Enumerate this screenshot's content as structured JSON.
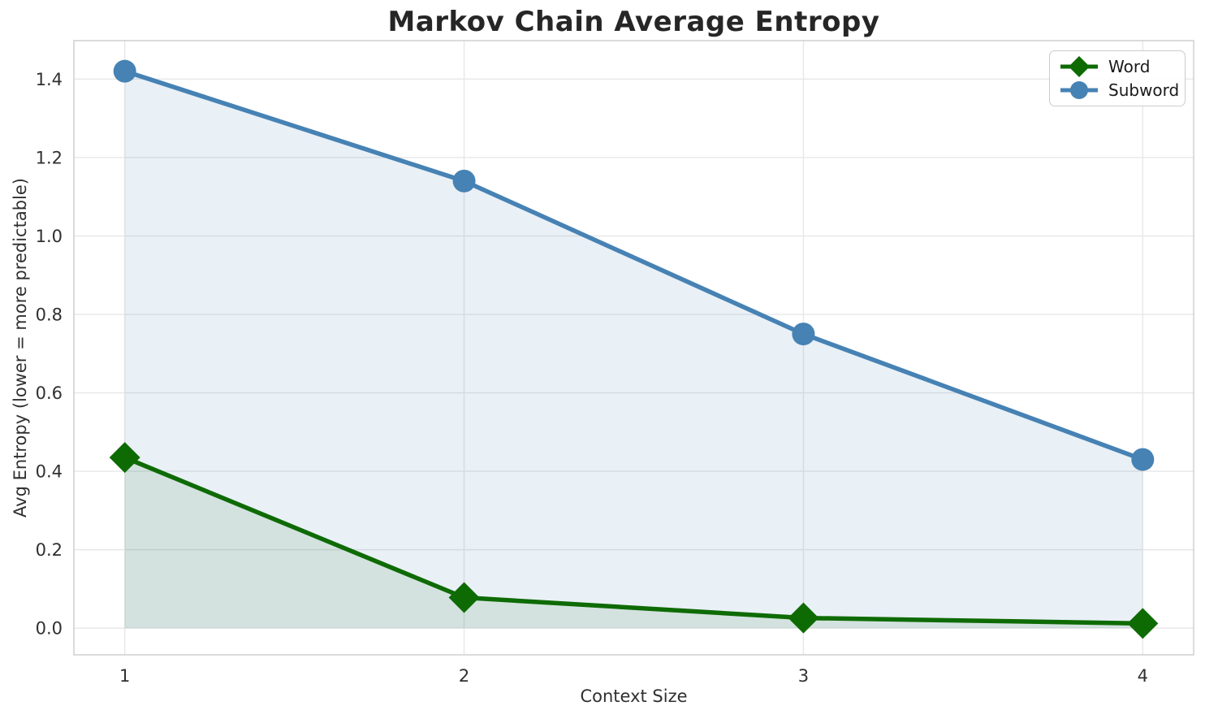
{
  "title": "Markov Chain Average Entropy",
  "axes": {
    "xlabel": "Context Size",
    "ylabel": "Avg Entropy (lower = more predictable)"
  },
  "legend": {
    "position": "upper right",
    "items": [
      {
        "label": "Word",
        "marker": "diamond-icon"
      },
      {
        "label": "Subword",
        "marker": "circle-icon"
      }
    ]
  },
  "chart_data": {
    "type": "line",
    "title": "Markov Chain Average Entropy",
    "xlabel": "Context Size",
    "ylabel": "Avg Entropy (lower = more predictable)",
    "x": [
      1,
      2,
      3,
      4
    ],
    "series": [
      {
        "name": "Word",
        "values": [
          0.435,
          0.078,
          0.026,
          0.012
        ],
        "color": "#0e6b04",
        "marker": "diamond",
        "fill_to_zero": true,
        "fill_opacity": 0.1
      },
      {
        "name": "Subword",
        "values": [
          1.42,
          1.14,
          0.75,
          0.43
        ],
        "color": "#4682B4",
        "marker": "circle",
        "fill_to_zero": true,
        "fill_opacity": 0.12
      }
    ],
    "x_ticks": [
      "1",
      "2",
      "3",
      "4"
    ],
    "x_tick_values": [
      1,
      2,
      3,
      4
    ],
    "y_ticks": [
      "0.0",
      "0.2",
      "0.4",
      "0.6",
      "0.8",
      "1.0",
      "1.2",
      "1.4"
    ],
    "y_tick_values": [
      0.0,
      0.2,
      0.4,
      0.6,
      0.8,
      1.0,
      1.2,
      1.4
    ],
    "xlim": [
      0.85,
      4.15
    ],
    "ylim": [
      -0.068,
      1.498
    ],
    "grid": true,
    "legend_position": "upper right"
  },
  "colors": {
    "word": "#0e6b04",
    "subword": "#4682B4",
    "grid": "#e7e7e7",
    "spine": "#cccccc",
    "tick_text": "#303030",
    "title_text": "#262626"
  }
}
